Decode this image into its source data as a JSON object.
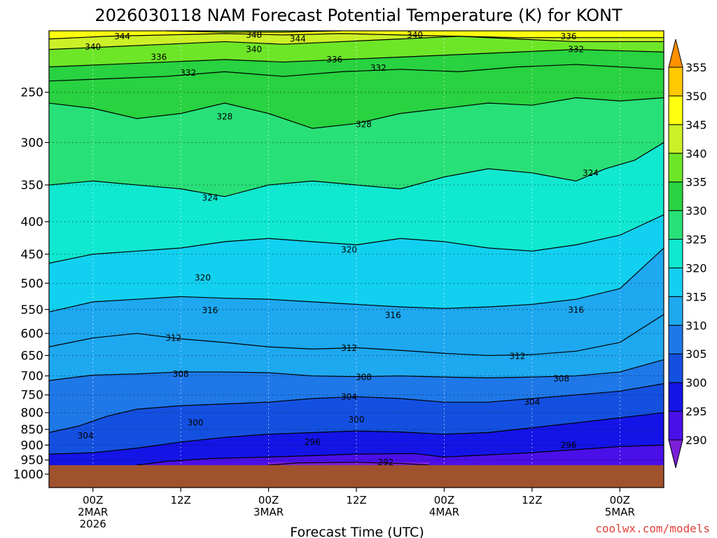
{
  "title": "2026030118 NAM Forecast Potential Temperature (K) for KONT",
  "xlabel": "Forecast Time (UTC)",
  "watermark": "coolwx.com/models",
  "chart_data": {
    "type": "heatmap",
    "title": "2026030118 NAM Forecast Potential Temperature (K) for KONT",
    "xlabel": "Forecast Time (UTC)",
    "ylabel": "",
    "y_axis": "pressure (hPa), inverted",
    "y_ticks": [
      250,
      300,
      350,
      400,
      450,
      500,
      550,
      600,
      650,
      700,
      750,
      800,
      850,
      900,
      950,
      1000
    ],
    "ylim": [
      1000,
      200
    ],
    "x_ticks": [
      {
        "hour": 6,
        "label": "00Z",
        "date": "2MAR",
        "year": "2026"
      },
      {
        "hour": 18,
        "label": "12Z",
        "date": "",
        "year": ""
      },
      {
        "hour": 30,
        "label": "00Z",
        "date": "3MAR",
        "year": ""
      },
      {
        "hour": 42,
        "label": "12Z",
        "date": "",
        "year": ""
      },
      {
        "hour": 54,
        "label": "00Z",
        "date": "4MAR",
        "year": ""
      },
      {
        "hour": 66,
        "label": "12Z",
        "date": "",
        "year": ""
      },
      {
        "hour": 78,
        "label": "00Z",
        "date": "5MAR",
        "year": ""
      }
    ],
    "xlim": [
      0,
      84
    ],
    "grid": true,
    "colorbar": {
      "levels": [
        290,
        295,
        300,
        305,
        310,
        315,
        320,
        325,
        330,
        335,
        340,
        345,
        350,
        355
      ],
      "colors": [
        "#7a1fd6",
        "#4b0fe8",
        "#1414e6",
        "#1450e0",
        "#1e78e8",
        "#1ea8f0",
        "#12d0f0",
        "#10e8d0",
        "#28e078",
        "#28d240",
        "#6ee628",
        "#ccf028",
        "#ffff10",
        "#ffc800",
        "#ff9000"
      ],
      "extend": "both",
      "placement": "right"
    },
    "ground": {
      "pressure": 968,
      "color": "#a0522d"
    },
    "isentropes": [
      {
        "value": 292,
        "points": [
          [
            30,
            968
          ],
          [
            34,
            960
          ],
          [
            42,
            958
          ],
          [
            48,
            962
          ],
          [
            52,
            968
          ]
        ]
      },
      {
        "value": 296,
        "points": [
          [
            12,
            968
          ],
          [
            16,
            955
          ],
          [
            22,
            945
          ],
          [
            30,
            940
          ],
          [
            36,
            935
          ],
          [
            42,
            930
          ],
          [
            50,
            928
          ],
          [
            54,
            940
          ],
          [
            58,
            935
          ],
          [
            66,
            925
          ],
          [
            72,
            915
          ],
          [
            78,
            905
          ],
          [
            84,
            900
          ]
        ]
      },
      {
        "value": 300,
        "points": [
          [
            0,
            930
          ],
          [
            6,
            925
          ],
          [
            12,
            910
          ],
          [
            18,
            890
          ],
          [
            24,
            875
          ],
          [
            30,
            865
          ],
          [
            36,
            860
          ],
          [
            42,
            855
          ],
          [
            48,
            858
          ],
          [
            54,
            865
          ],
          [
            60,
            860
          ],
          [
            66,
            845
          ],
          [
            72,
            830
          ],
          [
            78,
            815
          ],
          [
            84,
            800
          ]
        ]
      },
      {
        "value": 304,
        "points": [
          [
            0,
            860
          ],
          [
            4,
            840
          ],
          [
            8,
            810
          ],
          [
            12,
            790
          ],
          [
            18,
            780
          ],
          [
            24,
            775
          ],
          [
            30,
            770
          ],
          [
            36,
            760
          ],
          [
            42,
            755
          ],
          [
            48,
            760
          ],
          [
            54,
            770
          ],
          [
            60,
            770
          ],
          [
            66,
            760
          ],
          [
            72,
            750
          ],
          [
            78,
            740
          ],
          [
            84,
            720
          ]
        ]
      },
      {
        "value": 308,
        "points": [
          [
            0,
            712
          ],
          [
            6,
            698
          ],
          [
            12,
            695
          ],
          [
            18,
            690
          ],
          [
            24,
            690
          ],
          [
            30,
            692
          ],
          [
            36,
            700
          ],
          [
            42,
            702
          ],
          [
            48,
            700
          ],
          [
            54,
            703
          ],
          [
            60,
            705
          ],
          [
            66,
            703
          ],
          [
            72,
            700
          ],
          [
            78,
            690
          ],
          [
            84,
            660
          ]
        ]
      },
      {
        "value": 312,
        "points": [
          [
            0,
            630
          ],
          [
            6,
            610
          ],
          [
            12,
            600
          ],
          [
            18,
            612
          ],
          [
            24,
            620
          ],
          [
            30,
            630
          ],
          [
            36,
            635
          ],
          [
            42,
            632
          ],
          [
            48,
            638
          ],
          [
            54,
            645
          ],
          [
            60,
            650
          ],
          [
            66,
            648
          ],
          [
            72,
            640
          ],
          [
            78,
            620
          ],
          [
            84,
            560
          ]
        ]
      },
      {
        "value": 316,
        "points": [
          [
            0,
            555
          ],
          [
            6,
            535
          ],
          [
            12,
            530
          ],
          [
            18,
            525
          ],
          [
            24,
            528
          ],
          [
            30,
            530
          ],
          [
            36,
            535
          ],
          [
            42,
            540
          ],
          [
            48,
            545
          ],
          [
            54,
            548
          ],
          [
            60,
            545
          ],
          [
            66,
            540
          ],
          [
            72,
            530
          ],
          [
            78,
            510
          ],
          [
            84,
            440
          ]
        ]
      },
      {
        "value": 320,
        "points": [
          [
            0,
            465
          ],
          [
            6,
            450
          ],
          [
            12,
            445
          ],
          [
            18,
            440
          ],
          [
            24,
            430
          ],
          [
            30,
            425
          ],
          [
            36,
            430
          ],
          [
            42,
            435
          ],
          [
            48,
            425
          ],
          [
            54,
            430
          ],
          [
            60,
            440
          ],
          [
            66,
            445
          ],
          [
            72,
            435
          ],
          [
            78,
            420
          ],
          [
            84,
            390
          ]
        ]
      },
      {
        "value": 324,
        "points": [
          [
            0,
            350
          ],
          [
            6,
            345
          ],
          [
            12,
            350
          ],
          [
            18,
            355
          ],
          [
            24,
            365
          ],
          [
            30,
            350
          ],
          [
            36,
            345
          ],
          [
            42,
            350
          ],
          [
            48,
            355
          ],
          [
            54,
            340
          ],
          [
            60,
            330
          ],
          [
            66,
            335
          ],
          [
            72,
            345
          ],
          [
            76,
            330
          ],
          [
            80,
            320
          ],
          [
            84,
            300
          ]
        ]
      },
      {
        "value": 328,
        "points": [
          [
            0,
            260
          ],
          [
            6,
            265
          ],
          [
            12,
            275
          ],
          [
            18,
            270
          ],
          [
            24,
            260
          ],
          [
            30,
            270
          ],
          [
            36,
            285
          ],
          [
            42,
            280
          ],
          [
            48,
            270
          ],
          [
            54,
            265
          ],
          [
            60,
            260
          ],
          [
            66,
            262
          ],
          [
            72,
            255
          ],
          [
            78,
            258
          ],
          [
            84,
            255
          ]
        ]
      },
      {
        "value": 332,
        "points": [
          [
            0,
            240
          ],
          [
            8,
            238
          ],
          [
            16,
            236
          ],
          [
            24,
            232
          ],
          [
            32,
            236
          ],
          [
            40,
            232
          ],
          [
            48,
            230
          ],
          [
            56,
            232
          ],
          [
            64,
            228
          ],
          [
            72,
            226
          ],
          [
            84,
            230
          ]
        ]
      },
      {
        "value": 336,
        "points": [
          [
            0,
            228
          ],
          [
            8,
            226
          ],
          [
            16,
            224
          ],
          [
            24,
            222
          ],
          [
            32,
            224
          ],
          [
            40,
            222
          ],
          [
            48,
            220
          ],
          [
            56,
            218
          ],
          [
            64,
            216
          ],
          [
            72,
            214
          ],
          [
            84,
            216
          ]
        ]
      },
      {
        "value": 340,
        "points": [
          [
            0,
            214
          ],
          [
            8,
            212
          ],
          [
            16,
            210
          ],
          [
            24,
            208
          ],
          [
            32,
            210
          ],
          [
            40,
            208
          ],
          [
            48,
            206
          ],
          [
            56,
            204
          ],
          [
            64,
            206
          ],
          [
            72,
            208
          ],
          [
            84,
            208
          ]
        ]
      },
      {
        "value": 344,
        "points": [
          [
            0,
            206
          ],
          [
            8,
            204
          ],
          [
            16,
            203
          ],
          [
            24,
            202
          ],
          [
            32,
            203
          ],
          [
            40,
            202
          ],
          [
            48,
            203
          ],
          [
            56,
            204
          ],
          [
            64,
            205
          ],
          [
            72,
            205
          ],
          [
            84,
            205
          ]
        ]
      },
      {
        "value": 348,
        "points": [
          [
            16,
            200
          ],
          [
            24,
            201
          ],
          [
            32,
            201
          ],
          [
            40,
            200
          ]
        ]
      }
    ],
    "contour_labels": [
      {
        "text": "344",
        "x": 10,
        "p": 204
      },
      {
        "text": "340",
        "x": 6,
        "p": 212
      },
      {
        "text": "348",
        "x": 28,
        "p": 203
      },
      {
        "text": "344",
        "x": 34,
        "p": 206
      },
      {
        "text": "340",
        "x": 50,
        "p": 203
      },
      {
        "text": "336",
        "x": 71,
        "p": 204
      },
      {
        "text": "340",
        "x": 28,
        "p": 214
      },
      {
        "text": "336",
        "x": 15,
        "p": 220
      },
      {
        "text": "336",
        "x": 39,
        "p": 222
      },
      {
        "text": "332",
        "x": 72,
        "p": 214
      },
      {
        "text": "332",
        "x": 19,
        "p": 233
      },
      {
        "text": "332",
        "x": 45,
        "p": 229
      },
      {
        "text": "328",
        "x": 24,
        "p": 273
      },
      {
        "text": "328",
        "x": 43,
        "p": 281
      },
      {
        "text": "324",
        "x": 74,
        "p": 335
      },
      {
        "text": "324",
        "x": 22,
        "p": 367
      },
      {
        "text": "320",
        "x": 41,
        "p": 443
      },
      {
        "text": "320",
        "x": 21,
        "p": 490
      },
      {
        "text": "316",
        "x": 22,
        "p": 552
      },
      {
        "text": "316",
        "x": 47,
        "p": 562
      },
      {
        "text": "316",
        "x": 72,
        "p": 551
      },
      {
        "text": "312",
        "x": 17,
        "p": 610
      },
      {
        "text": "312",
        "x": 41,
        "p": 633
      },
      {
        "text": "312",
        "x": 64,
        "p": 652
      },
      {
        "text": "308",
        "x": 18,
        "p": 695
      },
      {
        "text": "308",
        "x": 43,
        "p": 703
      },
      {
        "text": "308",
        "x": 70,
        "p": 707
      },
      {
        "text": "304",
        "x": 41,
        "p": 755
      },
      {
        "text": "304",
        "x": 66,
        "p": 770
      },
      {
        "text": "304",
        "x": 5,
        "p": 870
      },
      {
        "text": "300",
        "x": 20,
        "p": 830
      },
      {
        "text": "300",
        "x": 42,
        "p": 820
      },
      {
        "text": "296",
        "x": 36,
        "p": 890
      },
      {
        "text": "296",
        "x": 71,
        "p": 900
      },
      {
        "text": "292",
        "x": 46,
        "p": 958
      }
    ]
  }
}
